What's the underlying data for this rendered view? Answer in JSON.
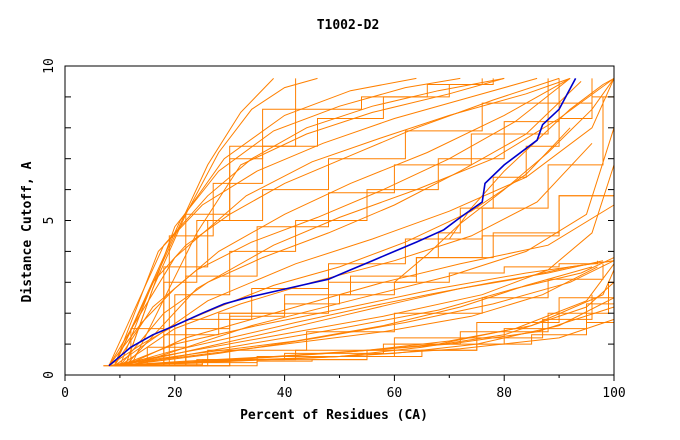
{
  "chart_data": {
    "type": "line",
    "title": "T1002-D2",
    "xlabel": "Percent of Residues (CA)",
    "ylabel": "Distance Cutoff, A",
    "xlim": [
      0,
      100
    ],
    "ylim": [
      0,
      10
    ],
    "x_ticks": [
      "0",
      "20",
      "40",
      "60",
      "80",
      "100"
    ],
    "y_ticks": [
      "0",
      "5",
      "10"
    ],
    "grid": false,
    "legend": "none",
    "colors": {
      "bundle": "#ff8000",
      "highlight": "#0000cc",
      "axis": "#000000"
    },
    "highlight_series": {
      "x": [
        8,
        12,
        16,
        20,
        25,
        29,
        33,
        38,
        43,
        48,
        52,
        56,
        60,
        64,
        69,
        72,
        76,
        76.5,
        80,
        86,
        87,
        90,
        93
      ],
      "y": [
        0.3,
        0.9,
        1.3,
        1.6,
        2.0,
        2.3,
        2.5,
        2.7,
        2.9,
        3.1,
        3.4,
        3.7,
        4.0,
        4.3,
        4.7,
        5.1,
        5.6,
        6.2,
        6.8,
        7.6,
        8.1,
        8.6,
        9.6
      ]
    },
    "bundle_series": [
      {
        "x": [
          7,
          15,
          25,
          35,
          45,
          55,
          65,
          75,
          85,
          95,
          100
        ],
        "y": [
          0.3,
          0.35,
          0.4,
          0.45,
          0.5,
          0.6,
          0.8,
          1.0,
          1.3,
          1.7,
          2.0
        ]
      },
      {
        "x": [
          8,
          20,
          35,
          50,
          65,
          80,
          95,
          100
        ],
        "y": [
          0.3,
          0.4,
          0.5,
          0.6,
          0.9,
          1.3,
          2.2,
          3.0
        ]
      },
      {
        "x": [
          9,
          22,
          38,
          55,
          70,
          85,
          98,
          100
        ],
        "y": [
          0.3,
          0.45,
          0.6,
          0.8,
          1.1,
          1.6,
          2.6,
          3.4
        ]
      },
      {
        "x": [
          10,
          25,
          40,
          58,
          72,
          88,
          99,
          100
        ],
        "y": [
          0.3,
          0.5,
          0.7,
          1.0,
          1.4,
          2.0,
          3.0,
          3.7
        ]
      },
      {
        "x": [
          8,
          18,
          30,
          45,
          60,
          75,
          90,
          100
        ],
        "y": [
          0.3,
          0.35,
          0.45,
          0.55,
          0.7,
          1.0,
          1.6,
          2.5
        ]
      },
      {
        "x": [
          9,
          20,
          35,
          52,
          68,
          82,
          95,
          100
        ],
        "y": [
          0.3,
          0.4,
          0.55,
          0.75,
          1.0,
          1.5,
          2.4,
          3.6
        ]
      },
      {
        "x": [
          10,
          24,
          42,
          60,
          75,
          90,
          100
        ],
        "y": [
          0.3,
          0.5,
          0.8,
          1.2,
          1.7,
          2.5,
          3.8
        ]
      },
      {
        "x": [
          8,
          22,
          40,
          58,
          74,
          87,
          97
        ],
        "y": [
          0.3,
          0.6,
          1.0,
          1.4,
          1.9,
          2.6,
          3.5
        ]
      },
      {
        "x": [
          10,
          28,
          46,
          62,
          78,
          92,
          100
        ],
        "y": [
          0.3,
          0.7,
          1.2,
          1.7,
          2.3,
          3.0,
          3.7
        ]
      },
      {
        "x": [
          9,
          26,
          44,
          60,
          76,
          88,
          98
        ],
        "y": [
          0.3,
          0.8,
          1.4,
          2.0,
          2.5,
          3.1,
          3.6
        ]
      },
      {
        "x": [
          11,
          30,
          50,
          68,
          82,
          94,
          100
        ],
        "y": [
          0.3,
          0.9,
          1.5,
          2.1,
          2.8,
          3.3,
          3.8
        ]
      },
      {
        "x": [
          8,
          24,
          42,
          58,
          72,
          84,
          96
        ],
        "y": [
          0.3,
          0.7,
          1.1,
          1.6,
          2.2,
          2.9,
          3.5
        ]
      },
      {
        "x": [
          10,
          30,
          55,
          75,
          87,
          96
        ],
        "y": [
          0.3,
          0.5,
          0.8,
          1.2,
          1.8,
          2.6
        ]
      },
      {
        "x": [
          9,
          27,
          48,
          70,
          86,
          100
        ],
        "y": [
          0.3,
          0.45,
          0.7,
          1.0,
          1.4,
          2.2
        ]
      },
      {
        "x": [
          8,
          25,
          50,
          72,
          90,
          100
        ],
        "y": [
          0.3,
          0.4,
          0.6,
          0.85,
          1.2,
          1.8
        ]
      },
      {
        "x": [
          12,
          35,
          60,
          80,
          95,
          100
        ],
        "y": [
          0.3,
          0.6,
          1.0,
          1.5,
          2.3,
          3.2
        ]
      },
      {
        "x": [
          9,
          18,
          28,
          38,
          50,
          62,
          72,
          82,
          92,
          100
        ],
        "y": [
          0.3,
          0.6,
          1.0,
          1.4,
          1.9,
          2.4,
          2.8,
          3.1,
          3.5,
          3.7
        ]
      },
      {
        "x": [
          10,
          20,
          30,
          42,
          55,
          66,
          78,
          88,
          98
        ],
        "y": [
          0.3,
          0.8,
          1.2,
          1.7,
          2.2,
          2.6,
          3.0,
          3.3,
          3.7
        ]
      },
      {
        "x": [
          8,
          15,
          22,
          30,
          40,
          50,
          60,
          70,
          80,
          90,
          97
        ],
        "y": [
          0.3,
          0.9,
          1.5,
          1.9,
          2.3,
          2.6,
          3.0,
          3.3,
          3.5,
          3.6,
          3.7
        ]
      },
      {
        "x": [
          10,
          20,
          35,
          52,
          68,
          84,
          100
        ],
        "y": [
          0.3,
          1.0,
          1.6,
          2.2,
          2.8,
          3.3,
          3.7
        ]
      },
      {
        "x": [
          11,
          22,
          32,
          44,
          58,
          72,
          88,
          100
        ],
        "y": [
          0.3,
          1.2,
          1.7,
          2.3,
          3.0,
          3.6,
          4.2,
          5.5
        ]
      },
      {
        "x": [
          9,
          18,
          28,
          40,
          52,
          64,
          76,
          90,
          100
        ],
        "y": [
          0.3,
          1.3,
          2.0,
          2.6,
          3.2,
          3.8,
          4.5,
          5.8,
          7.0
        ]
      },
      {
        "x": [
          10,
          20,
          32,
          45,
          60,
          74,
          86,
          96
        ],
        "y": [
          0.3,
          1.5,
          2.3,
          3.0,
          3.7,
          4.5,
          5.6,
          7.5
        ]
      },
      {
        "x": [
          8,
          14,
          20,
          28,
          38,
          50,
          62,
          74,
          84,
          92
        ],
        "y": [
          0.3,
          1.0,
          1.6,
          2.2,
          2.9,
          3.5,
          4.3,
          5.3,
          6.5,
          8.0
        ]
      },
      {
        "x": [
          12,
          22,
          34,
          48,
          62,
          76,
          88,
          98
        ],
        "y": [
          0.3,
          1.8,
          2.8,
          3.6,
          4.4,
          5.4,
          6.8,
          9.0
        ]
      },
      {
        "x": [
          10,
          18,
          26,
          36,
          48,
          60,
          72,
          84,
          94
        ],
        "y": [
          0.3,
          2.0,
          3.0,
          3.8,
          4.6,
          5.5,
          6.6,
          7.8,
          9.5
        ]
      },
      {
        "x": [
          9,
          16,
          24,
          34,
          46,
          58,
          70,
          82,
          92
        ],
        "y": [
          0.3,
          2.2,
          3.4,
          4.3,
          5.1,
          6.0,
          7.0,
          8.2,
          9.6
        ]
      },
      {
        "x": [
          11,
          20,
          30,
          42,
          55,
          68,
          80,
          90
        ],
        "y": [
          0.3,
          2.6,
          4.0,
          5.0,
          6.0,
          7.0,
          8.2,
          9.6
        ]
      },
      {
        "x": [
          8,
          14,
          20,
          28,
          40,
          52,
          66,
          80,
          92
        ],
        "y": [
          0.3,
          1.7,
          2.8,
          4.0,
          5.2,
          6.2,
          7.2,
          8.4,
          9.6
        ]
      },
      {
        "x": [
          10,
          16,
          22,
          30,
          40,
          52,
          64,
          78,
          90
        ],
        "y": [
          0.3,
          3.0,
          4.2,
          5.2,
          6.2,
          7.1,
          8.0,
          8.9,
          9.6
        ]
      },
      {
        "x": [
          12,
          18,
          26,
          36,
          48,
          62,
          76,
          88
        ],
        "y": [
          0.3,
          3.5,
          5.0,
          6.0,
          7.0,
          7.9,
          8.8,
          9.6
        ]
      },
      {
        "x": [
          9,
          17,
          25,
          35,
          47,
          60,
          74,
          86
        ],
        "y": [
          0.3,
          4.0,
          5.5,
          6.6,
          7.5,
          8.3,
          9.0,
          9.6
        ]
      },
      {
        "x": [
          8,
          18,
          26,
          34,
          44,
          56,
          68,
          80
        ],
        "y": [
          0.3,
          4.2,
          5.8,
          7.0,
          8.0,
          8.7,
          9.2,
          9.6
        ]
      },
      {
        "x": [
          10,
          19,
          27,
          36,
          46,
          58,
          70,
          78
        ],
        "y": [
          0.3,
          4.5,
          6.2,
          7.4,
          8.3,
          9.0,
          9.4,
          9.6
        ]
      },
      {
        "x": [
          11,
          20,
          28,
          38,
          50,
          62,
          72
        ],
        "y": [
          0.3,
          4.8,
          6.6,
          7.9,
          8.7,
          9.3,
          9.6
        ]
      },
      {
        "x": [
          9,
          21,
          29,
          40,
          52,
          64
        ],
        "y": [
          0.3,
          5.0,
          7.0,
          8.4,
          9.2,
          9.6
        ]
      },
      {
        "x": [
          10,
          22,
          30,
          42,
          54,
          66,
          76
        ],
        "y": [
          0.3,
          5.2,
          7.4,
          8.6,
          9.0,
          9.4,
          9.6
        ]
      },
      {
        "x": [
          12,
          24,
          32,
          44,
          56,
          70,
          80
        ],
        "y": [
          0.3,
          4.6,
          6.8,
          7.8,
          8.5,
          9.1,
          9.6
        ]
      },
      {
        "x": [
          8,
          20,
          33,
          45,
          58,
          70,
          84,
          92
        ],
        "y": [
          0.3,
          3.8,
          5.8,
          6.9,
          7.7,
          8.4,
          9.1,
          9.6
        ]
      },
      {
        "x": [
          10,
          22,
          35,
          48,
          60,
          74,
          88,
          96
        ],
        "y": [
          0.3,
          3.2,
          4.8,
          5.9,
          6.8,
          7.8,
          8.8,
          9.6
        ]
      },
      {
        "x": [
          11,
          24,
          38,
          50,
          64,
          78,
          90,
          100
        ],
        "y": [
          0.3,
          2.8,
          4.2,
          5.1,
          6.0,
          7.0,
          8.3,
          9.6
        ]
      },
      {
        "x": [
          9,
          26,
          42,
          56,
          70,
          84,
          96,
          100
        ],
        "y": [
          0.3,
          2.4,
          3.6,
          4.4,
          5.3,
          6.4,
          8.0,
          9.6
        ]
      },
      {
        "x": [
          10,
          30,
          48,
          64,
          78,
          90,
          100
        ],
        "y": [
          0.3,
          2.0,
          3.0,
          3.8,
          4.6,
          5.8,
          9.6
        ]
      },
      {
        "x": [
          12,
          34,
          54,
          70,
          84,
          95,
          100
        ],
        "y": [
          0.3,
          1.6,
          2.5,
          3.2,
          4.0,
          5.2,
          8.0
        ]
      },
      {
        "x": [
          8,
          36,
          58,
          76,
          88,
          96,
          100
        ],
        "y": [
          0.3,
          1.2,
          1.9,
          2.6,
          3.4,
          4.6,
          6.8
        ]
      },
      {
        "x": [
          7,
          12,
          18,
          24,
          30,
          36,
          42
        ],
        "y": [
          0.3,
          1.5,
          3.0,
          5.0,
          7.0,
          8.6,
          9.6
        ]
      },
      {
        "x": [
          9,
          14,
          20,
          26,
          32,
          38
        ],
        "y": [
          0.3,
          2.2,
          4.5,
          6.8,
          8.5,
          9.6
        ]
      },
      {
        "x": [
          11,
          16,
          22,
          28,
          34,
          40,
          46
        ],
        "y": [
          0.3,
          2.8,
          5.2,
          7.2,
          8.6,
          9.3,
          9.6
        ]
      },
      {
        "x": [
          64,
          68,
          72,
          78,
          84,
          90,
          96,
          100
        ],
        "y": [
          3.8,
          4.6,
          5.4,
          6.4,
          7.4,
          8.3,
          9.0,
          9.6
        ]
      },
      {
        "x": [
          70,
          74,
          80,
          86,
          92,
          98,
          100
        ],
        "y": [
          4.4,
          5.4,
          6.6,
          7.6,
          8.6,
          9.4,
          9.6
        ]
      },
      {
        "x": [
          60,
          66,
          72,
          80,
          88,
          96,
          100
        ],
        "y": [
          3.0,
          3.9,
          4.9,
          6.0,
          7.2,
          8.6,
          9.6
        ]
      }
    ]
  }
}
